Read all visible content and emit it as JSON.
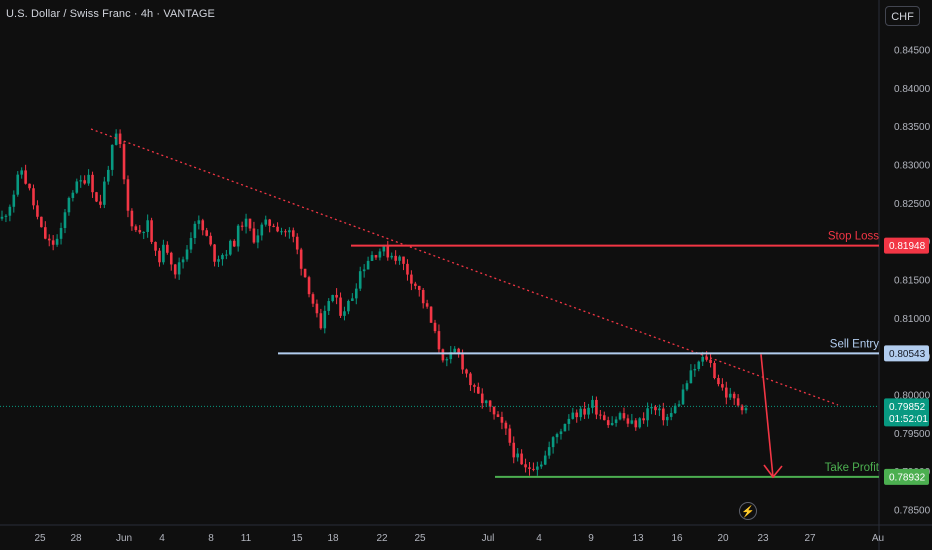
{
  "header": {
    "title": "U.S. Dollar / Swiss Franc · 4h · VANTAGE",
    "currency": "CHF"
  },
  "colors": {
    "background": "#0f0f0f",
    "up": "#089981",
    "down": "#f23645",
    "stop_loss": "#f23645",
    "entry": "#b2cdef",
    "take_profit": "#4caf50",
    "trendline": "#f23645",
    "current_price": "#089981"
  },
  "icons": {
    "replay": "lightning-icon"
  },
  "chart_data": {
    "type": "candlestick",
    "title": "U.S. Dollar / Swiss Franc · 4h · VANTAGE",
    "timeframe": "4h",
    "x_tick_labels": [
      "25",
      "28",
      "Jun",
      "4",
      "8",
      "11",
      "15",
      "18",
      "22",
      "25",
      "Jul",
      "4",
      "9",
      "13",
      "16",
      "20",
      "23",
      "27",
      "Au"
    ],
    "y_ticks": [
      0.785,
      0.79,
      0.795,
      0.8,
      0.805,
      0.81,
      0.815,
      0.82,
      0.825,
      0.83,
      0.835,
      0.84,
      0.845
    ],
    "ylim": [
      0.7825,
      0.8478
    ],
    "grid": false,
    "price_path": [
      [
        0,
        0.823
      ],
      [
        1,
        0.8255
      ],
      [
        2,
        0.8295
      ],
      [
        3,
        0.826
      ],
      [
        4,
        0.8215
      ],
      [
        5,
        0.8195
      ],
      [
        6,
        0.8205
      ],
      [
        7,
        0.8265
      ],
      [
        8,
        0.8275
      ],
      [
        9,
        0.829
      ],
      [
        10,
        0.824
      ],
      [
        11,
        0.83
      ],
      [
        12,
        0.8345
      ],
      [
        13,
        0.824
      ],
      [
        14,
        0.821
      ],
      [
        15,
        0.8225
      ],
      [
        16,
        0.8175
      ],
      [
        17,
        0.8195
      ],
      [
        18,
        0.816
      ],
      [
        19,
        0.8185
      ],
      [
        20,
        0.823
      ],
      [
        21,
        0.821
      ],
      [
        22,
        0.818
      ],
      [
        23,
        0.8185
      ],
      [
        24,
        0.82
      ],
      [
        25,
        0.823
      ],
      [
        26,
        0.8205
      ],
      [
        27,
        0.822
      ],
      [
        28,
        0.8225
      ],
      [
        29,
        0.8215
      ],
      [
        30,
        0.821
      ],
      [
        31,
        0.817
      ],
      [
        32,
        0.813
      ],
      [
        33,
        0.808
      ],
      [
        34,
        0.8135
      ],
      [
        35,
        0.811
      ],
      [
        36,
        0.812
      ],
      [
        37,
        0.816
      ],
      [
        38,
        0.818
      ],
      [
        39,
        0.819
      ],
      [
        40,
        0.8185
      ],
      [
        41,
        0.818
      ],
      [
        42,
        0.816
      ],
      [
        43,
        0.814
      ],
      [
        44,
        0.811
      ],
      [
        45,
        0.807
      ],
      [
        46,
        0.804
      ],
      [
        47,
        0.806
      ],
      [
        48,
        0.803
      ],
      [
        49,
        0.8
      ],
      [
        50,
        0.799
      ],
      [
        51,
        0.797
      ],
      [
        52,
        0.7955
      ],
      [
        53,
        0.7925
      ],
      [
        54,
        0.79
      ],
      [
        55,
        0.791
      ],
      [
        56,
        0.7915
      ],
      [
        57,
        0.794
      ],
      [
        58,
        0.796
      ],
      [
        59,
        0.798
      ],
      [
        60,
        0.7975
      ],
      [
        61,
        0.799
      ],
      [
        62,
        0.7975
      ],
      [
        63,
        0.7965
      ],
      [
        64,
        0.7975
      ],
      [
        65,
        0.796
      ],
      [
        66,
        0.7965
      ],
      [
        67,
        0.7985
      ],
      [
        68,
        0.7975
      ],
      [
        69,
        0.797
      ],
      [
        70,
        0.799
      ],
      [
        71,
        0.802
      ],
      [
        72,
        0.804
      ],
      [
        73,
        0.805
      ],
      [
        74,
        0.802
      ],
      [
        75,
        0.8
      ],
      [
        76,
        0.799
      ],
      [
        77,
        0.7985
      ]
    ],
    "horizontal_levels": [
      {
        "label": "Stop Loss",
        "value": 0.81948,
        "tag": "0.81948",
        "color": "#f23645"
      },
      {
        "label": "Sell Entry",
        "value": 0.80543,
        "tag": "0.80543",
        "color": "#b2cdef"
      },
      {
        "label": "Take Profit",
        "value": 0.78932,
        "tag": "0.78932",
        "color": "#4caf50"
      }
    ],
    "current_price": {
      "value": 0.79852,
      "tag": "0.79852",
      "countdown": "01:52:01"
    },
    "trendline": {
      "from": [
        0.8348,
        "May 28"
      ],
      "to": [
        0.7998,
        "Jul 26"
      ],
      "style": "dotted"
    },
    "projection": {
      "from": 0.8053,
      "to": 0.7893,
      "direction": "down"
    }
  }
}
